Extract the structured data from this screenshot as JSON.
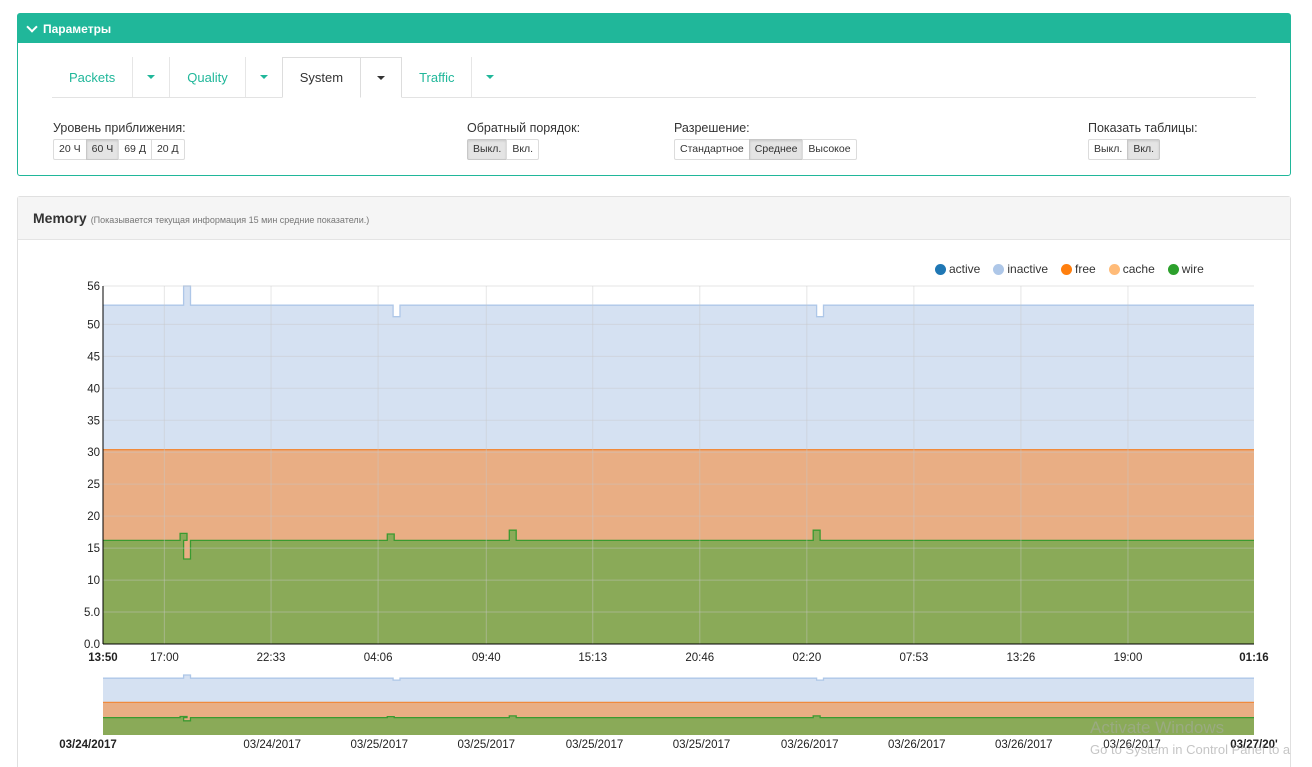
{
  "params": {
    "title": "Параметры",
    "tabs": [
      {
        "label": "Packets"
      },
      {
        "label": "Quality"
      },
      {
        "label": "System"
      },
      {
        "label": "Traffic"
      }
    ],
    "zoom": {
      "label": "Уровень приближения:",
      "options": [
        "20 Ч",
        "60 Ч",
        "69 Д",
        "20 Д"
      ],
      "selected": "60 Ч"
    },
    "reverse": {
      "label": "Обратный порядок:",
      "options": [
        "Выкл.",
        "Вкл."
      ],
      "selected": "Выкл."
    },
    "resolution": {
      "label": "Разрешение:",
      "options": [
        "Стандартное",
        "Среднее",
        "Высокое"
      ],
      "selected": "Среднее"
    },
    "tables": {
      "label": "Показать таблицы:",
      "options": [
        "Выкл.",
        "Вкл."
      ],
      "selected": "Вкл."
    }
  },
  "memory": {
    "title": "Memory",
    "subtitle": "(Показывается текущая информация 15 мин средние показатели.)"
  },
  "colors": {
    "accent": "#20b79a",
    "active": "#1f77b4",
    "inactive": "#aec7e8",
    "free": "#ff7f0e",
    "cache": "#ffbb78",
    "wire": "#2ca02c"
  },
  "chart_data": {
    "type": "area",
    "stacked": true,
    "legend": [
      "active",
      "inactive",
      "free",
      "cache",
      "wire"
    ],
    "legend_position": "top-right",
    "ylim": [
      0,
      56
    ],
    "yticks": [
      "0.0",
      "5.0",
      "10",
      "15",
      "20",
      "25",
      "30",
      "35",
      "40",
      "45",
      "50",
      "56"
    ],
    "xticks": [
      "13:50",
      "17:00",
      "22:33",
      "04:06",
      "09:40",
      "15:13",
      "20:46",
      "02:20",
      "07:53",
      "13:26",
      "19:00",
      "01:16"
    ],
    "bold_xticks": [
      "13:50",
      "01:16"
    ],
    "grid": true,
    "series": [
      {
        "name": "wire",
        "level": 16.2,
        "spikes": [
          {
            "x": 0.07,
            "value": 17.3
          },
          {
            "x": 0.073,
            "value": 13.3
          },
          {
            "x": 0.25,
            "value": 17.2
          },
          {
            "x": 0.356,
            "value": 17.8
          },
          {
            "x": 0.62,
            "value": 17.8
          }
        ],
        "color": "#2ca02c"
      },
      {
        "name": "cache",
        "level": 30.3,
        "color": "#ffbb78"
      },
      {
        "name": "free",
        "level": 30.4,
        "color": "#ff7f0e"
      },
      {
        "name": "inactive",
        "level": 53.0,
        "spikes": [
          {
            "x": 0.073,
            "value": 56
          },
          {
            "x": 0.255,
            "value": 51.2
          },
          {
            "x": 0.623,
            "value": 51.2
          }
        ],
        "color": "#aec7e8"
      },
      {
        "name": "active",
        "level": 53.0,
        "color": "#1f77b4"
      }
    ],
    "navigator": {
      "xticks": [
        "03/24/2017",
        "03/24/2017",
        "03/25/2017",
        "03/25/2017",
        "03/25/2017",
        "03/25/2017",
        "03/26/2017",
        "03/26/2017",
        "03/26/2017",
        "03/26/2017",
        "03/27/20'"
      ],
      "bold_xticks": [
        "03/24/2017",
        "03/27/20'"
      ]
    }
  },
  "watermark": {
    "line1": "Activate Windows",
    "line2": "Go to System in Control Panel to a"
  }
}
